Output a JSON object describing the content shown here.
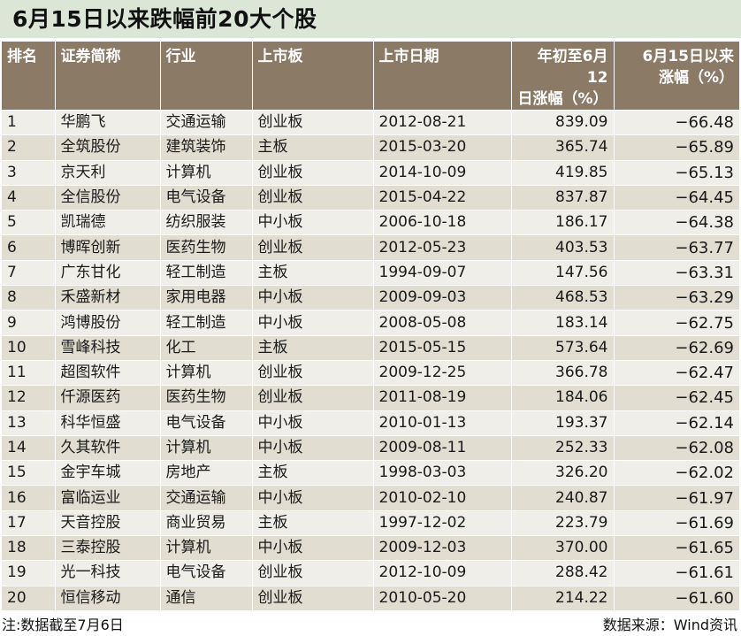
{
  "title": "6月15日以来跌幅前20大个股",
  "columns": {
    "rank": "排名",
    "name": "证券简称",
    "industry": "行业",
    "board": "上市板",
    "list_date": "上市日期",
    "ytd_line1": "年初至6月12",
    "ytd_line2": "日涨幅（%）",
    "chg_line1": "6月15日以来",
    "chg_line2": "涨幅（%）"
  },
  "rows": [
    [
      "1",
      "华鹏飞",
      "交通运输",
      "创业板",
      "2012-08-21",
      "839.09",
      "−66.48"
    ],
    [
      "2",
      "全筑股份",
      "建筑装饰",
      "主板",
      "2015-03-20",
      "365.74",
      "−65.89"
    ],
    [
      "3",
      "京天利",
      "计算机",
      "创业板",
      "2014-10-09",
      "419.85",
      "−65.13"
    ],
    [
      "4",
      "全信股份",
      "电气设备",
      "创业板",
      "2015-04-22",
      "837.87",
      "−64.45"
    ],
    [
      "5",
      "凯瑞德",
      "纺织服装",
      "中小板",
      "2006-10-18",
      "186.17",
      "−64.38"
    ],
    [
      "6",
      "博晖创新",
      "医药生物",
      "创业板",
      "2012-05-23",
      "403.53",
      "−63.77"
    ],
    [
      "7",
      "广东甘化",
      "轻工制造",
      "主板",
      "1994-09-07",
      "147.56",
      "−63.31"
    ],
    [
      "8",
      "禾盛新材",
      "家用电器",
      "中小板",
      "2009-09-03",
      "468.53",
      "−63.29"
    ],
    [
      "9",
      "鸿博股份",
      "轻工制造",
      "中小板",
      "2008-05-08",
      "183.14",
      "−62.75"
    ],
    [
      "10",
      "雪峰科技",
      "化工",
      "主板",
      "2015-05-15",
      "573.64",
      "−62.69"
    ],
    [
      "11",
      "超图软件",
      "计算机",
      "创业板",
      "2009-12-25",
      "366.78",
      "−62.47"
    ],
    [
      "12",
      "仟源医药",
      "医药生物",
      "创业板",
      "2011-08-19",
      "184.06",
      "−62.45"
    ],
    [
      "13",
      "科华恒盛",
      "电气设备",
      "中小板",
      "2010-01-13",
      "193.37",
      "−62.14"
    ],
    [
      "14",
      "久其软件",
      "计算机",
      "中小板",
      "2009-08-11",
      "252.33",
      "−62.08"
    ],
    [
      "15",
      "金宇车城",
      "房地产",
      "主板",
      "1998-03-03",
      "326.20",
      "−62.02"
    ],
    [
      "16",
      "富临运业",
      "交通运输",
      "中小板",
      "2010-02-10",
      "240.87",
      "−61.97"
    ],
    [
      "17",
      "天音控股",
      "商业贸易",
      "主板",
      "1997-12-02",
      "223.79",
      "−61.69"
    ],
    [
      "18",
      "三泰控股",
      "计算机",
      "中小板",
      "2009-12-03",
      "370.00",
      "−61.65"
    ],
    [
      "19",
      "光一科技",
      "电气设备",
      "创业板",
      "2012-10-09",
      "288.42",
      "−61.61"
    ],
    [
      "20",
      "恒信移动",
      "通信",
      "创业板",
      "2010-05-20",
      "214.22",
      "−61.60"
    ]
  ],
  "footer": {
    "note": "注:数据截至7月6日",
    "source": "数据来源：Wind资讯"
  }
}
